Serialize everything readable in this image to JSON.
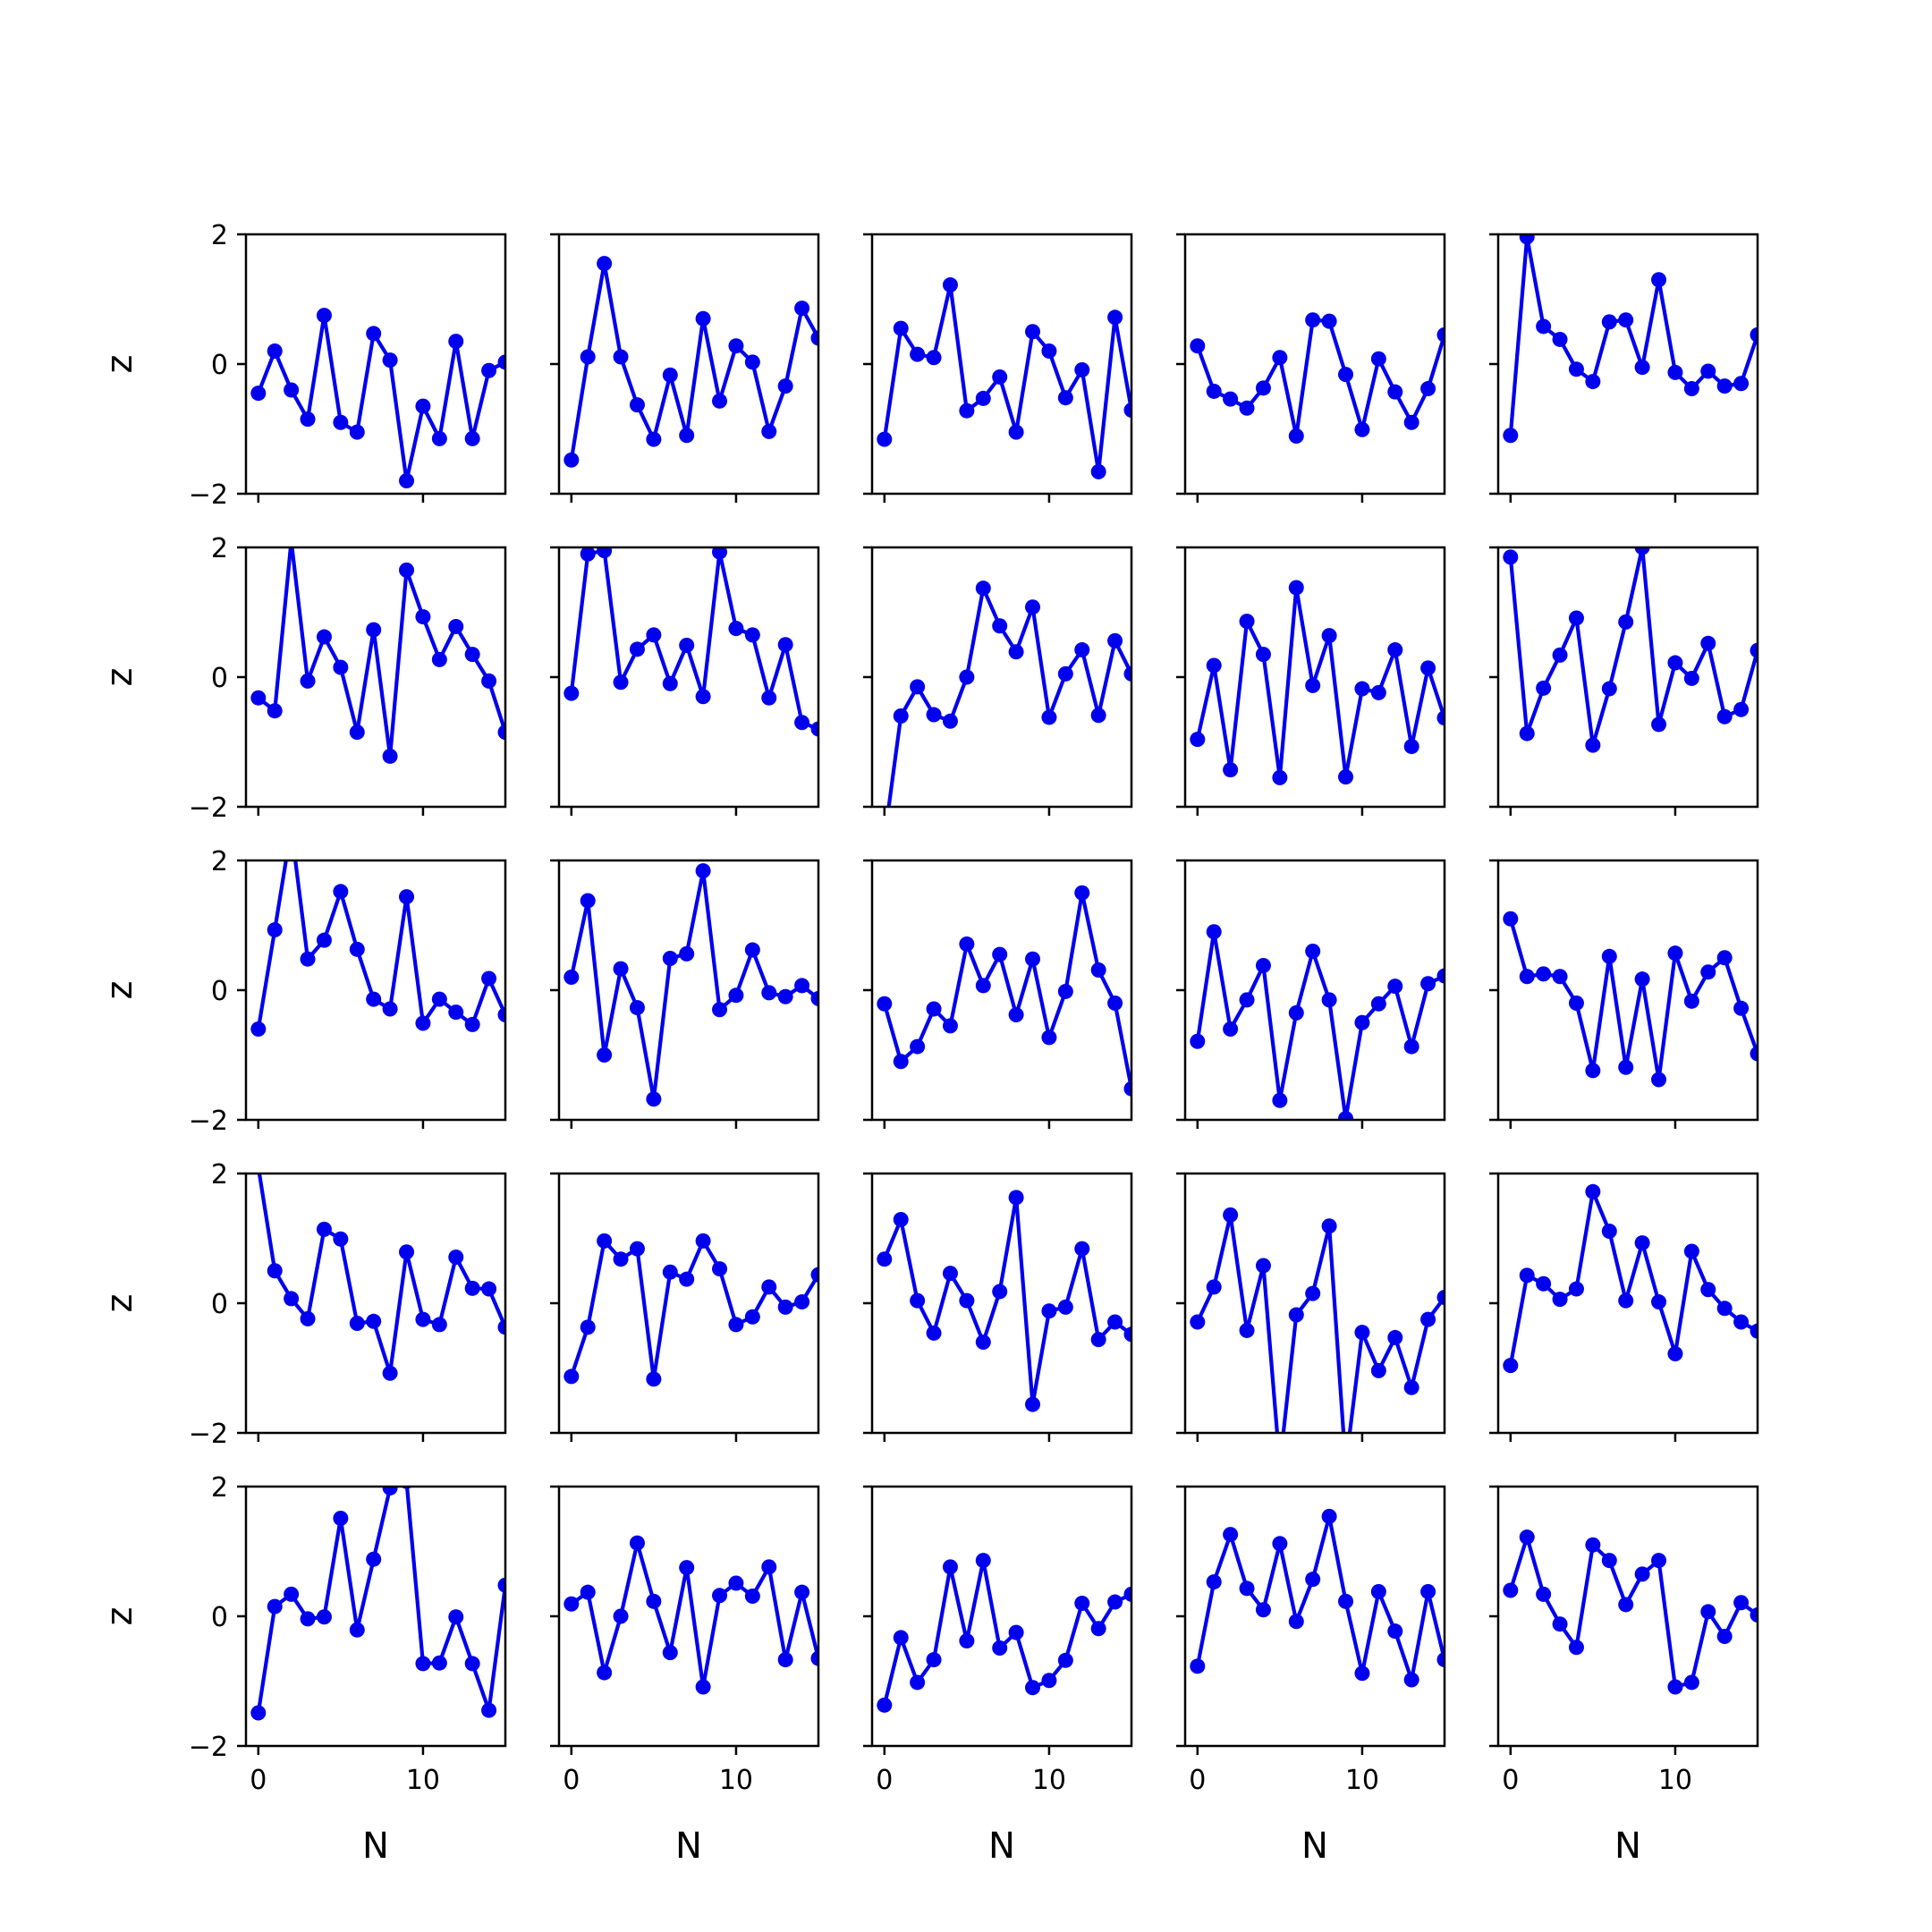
{
  "chart_data": {
    "type": "line",
    "layout": "small-multiples grid",
    "rows": 5,
    "cols": 5,
    "shared_x": true,
    "shared_y": true,
    "xlabel": "N",
    "ylabel": "z",
    "xlim": [
      -0.75,
      15.0
    ],
    "ylim": [
      -2,
      2
    ],
    "xticks": [
      0,
      10
    ],
    "xtick_labels": [
      "0",
      "10"
    ],
    "yticks": [
      -2,
      0,
      2
    ],
    "ytick_labels": [
      "−2",
      "0",
      "2"
    ],
    "grid": false,
    "legend": "none",
    "line_color": "#0000ee",
    "marker": "circle",
    "x": [
      0,
      1,
      2,
      3,
      4,
      5,
      6,
      7,
      8,
      9,
      10,
      11,
      12,
      13,
      14,
      15
    ],
    "panels": [
      {
        "values": [
          -0.45,
          0.2,
          -0.4,
          -0.85,
          0.75,
          -0.9,
          -1.05,
          0.47,
          0.06,
          -1.8,
          -0.65,
          -1.15,
          0.35,
          -1.15,
          -0.1,
          0.03
        ]
      },
      {
        "values": [
          -1.48,
          0.11,
          1.55,
          0.11,
          -0.63,
          -1.16,
          -0.17,
          -1.1,
          0.7,
          -0.57,
          0.28,
          0.03,
          -1.04,
          -0.34,
          0.86,
          0.4
        ]
      },
      {
        "values": [
          -1.16,
          0.55,
          0.15,
          0.1,
          1.22,
          -0.72,
          -0.53,
          -0.2,
          -1.05,
          0.5,
          0.2,
          -0.52,
          -0.09,
          -1.66,
          0.72,
          -0.71
        ]
      },
      {
        "values": [
          0.28,
          -0.42,
          -0.54,
          -0.68,
          -0.37,
          0.1,
          -1.11,
          0.68,
          0.66,
          -0.16,
          -1.01,
          0.08,
          -0.43,
          -0.9,
          -0.38,
          0.45
        ]
      },
      {
        "values": [
          -1.1,
          1.96,
          0.58,
          0.38,
          -0.08,
          -0.27,
          0.65,
          0.68,
          -0.05,
          1.3,
          -0.13,
          -0.38,
          -0.11,
          -0.34,
          -0.3,
          0.45
        ]
      },
      {
        "values": [
          -0.32,
          -0.52,
          2.1,
          -0.06,
          0.62,
          0.15,
          -0.85,
          0.73,
          -1.22,
          1.65,
          0.93,
          0.27,
          0.78,
          0.35,
          -0.06,
          -0.85
        ]
      },
      {
        "values": [
          -0.25,
          1.9,
          1.95,
          -0.08,
          0.43,
          0.65,
          -0.1,
          0.49,
          -0.3,
          1.93,
          0.75,
          0.65,
          -0.32,
          0.5,
          -0.7,
          -0.8
        ]
      },
      {
        "values": [
          -2.5,
          -0.6,
          -0.15,
          -0.58,
          -0.68,
          0.0,
          1.37,
          0.79,
          0.39,
          1.08,
          -0.62,
          0.05,
          0.42,
          -0.59,
          0.56,
          0.05
        ]
      },
      {
        "values": [
          -0.96,
          0.18,
          -1.43,
          0.86,
          0.35,
          -1.55,
          1.38,
          -0.13,
          0.64,
          -1.54,
          -0.18,
          -0.24,
          0.42,
          -1.07,
          0.14,
          -0.63
        ]
      },
      {
        "values": [
          1.85,
          -0.87,
          -0.17,
          0.34,
          0.91,
          -1.05,
          -0.18,
          0.85,
          2.0,
          -0.73,
          0.22,
          -0.02,
          0.52,
          -0.61,
          -0.5,
          0.41
        ]
      },
      {
        "values": [
          -0.6,
          0.93,
          2.5,
          0.48,
          0.77,
          1.52,
          0.63,
          -0.14,
          -0.29,
          1.44,
          -0.51,
          -0.14,
          -0.34,
          -0.53,
          0.18,
          -0.38
        ]
      },
      {
        "values": [
          0.2,
          1.38,
          -1.0,
          0.33,
          -0.27,
          -1.68,
          0.49,
          0.56,
          1.84,
          -0.3,
          -0.08,
          0.62,
          -0.04,
          -0.1,
          0.07,
          -0.13
        ]
      },
      {
        "values": [
          -0.21,
          -1.1,
          -0.87,
          -0.29,
          -0.55,
          0.71,
          0.07,
          0.55,
          -0.38,
          0.48,
          -0.73,
          -0.02,
          1.5,
          0.31,
          -0.2,
          -1.52
        ]
      },
      {
        "values": [
          -0.79,
          0.9,
          -0.6,
          -0.15,
          0.38,
          -1.7,
          -0.35,
          0.6,
          -0.15,
          -1.98,
          -0.5,
          -0.21,
          0.06,
          -0.87,
          0.1,
          0.22
        ]
      },
      {
        "values": [
          1.1,
          0.21,
          0.25,
          0.21,
          -0.2,
          -1.24,
          0.52,
          -1.19,
          0.17,
          -1.38,
          0.57,
          -0.17,
          0.28,
          0.5,
          -0.28,
          -0.98
        ]
      },
      {
        "values": [
          2.1,
          0.5,
          0.07,
          -0.24,
          1.14,
          0.99,
          -0.31,
          -0.28,
          -1.08,
          0.79,
          -0.25,
          -0.33,
          0.71,
          0.23,
          0.22,
          -0.37
        ]
      },
      {
        "values": [
          -1.13,
          -0.37,
          0.96,
          0.68,
          0.84,
          -1.17,
          0.48,
          0.37,
          0.96,
          0.53,
          -0.33,
          -0.21,
          0.25,
          -0.06,
          0.02,
          0.44
        ]
      },
      {
        "values": [
          0.68,
          1.29,
          0.04,
          -0.46,
          0.46,
          0.04,
          -0.6,
          0.18,
          1.63,
          -1.56,
          -0.12,
          -0.06,
          0.84,
          -0.56,
          -0.29,
          -0.48
        ]
      },
      {
        "values": [
          -0.29,
          0.25,
          1.36,
          -0.42,
          0.58,
          -2.5,
          -0.18,
          0.15,
          1.19,
          -2.5,
          -0.45,
          -1.04,
          -0.53,
          -1.3,
          -0.25,
          0.09
        ]
      },
      {
        "values": [
          -0.96,
          0.43,
          0.3,
          0.06,
          0.22,
          1.72,
          1.11,
          0.04,
          0.93,
          0.02,
          -0.78,
          0.8,
          0.21,
          -0.08,
          -0.29,
          -0.43
        ]
      },
      {
        "values": [
          -1.49,
          0.15,
          0.34,
          -0.04,
          -0.01,
          1.51,
          -0.21,
          0.88,
          1.98,
          2.08,
          -0.73,
          -0.72,
          -0.01,
          -0.73,
          -1.45,
          0.48
        ]
      },
      {
        "values": [
          0.19,
          0.37,
          -0.87,
          0.0,
          1.13,
          0.23,
          -0.56,
          0.75,
          -1.09,
          0.32,
          0.51,
          0.31,
          0.76,
          -0.67,
          0.37,
          -0.65
        ]
      },
      {
        "values": [
          -1.37,
          -0.33,
          -1.02,
          -0.67,
          0.76,
          -0.38,
          0.86,
          -0.49,
          -0.25,
          -1.1,
          -0.99,
          -0.68,
          0.2,
          -0.19,
          0.22,
          0.34
        ]
      },
      {
        "values": [
          -0.77,
          0.53,
          1.26,
          0.43,
          0.1,
          1.12,
          -0.08,
          0.57,
          1.54,
          0.23,
          -0.88,
          0.38,
          -0.23,
          -0.98,
          0.38,
          -0.67
        ]
      },
      {
        "values": [
          0.4,
          1.22,
          0.34,
          -0.12,
          -0.48,
          1.1,
          0.86,
          0.18,
          0.65,
          0.86,
          -1.09,
          -1.02,
          0.07,
          -0.31,
          0.21,
          0.02
        ]
      }
    ]
  }
}
